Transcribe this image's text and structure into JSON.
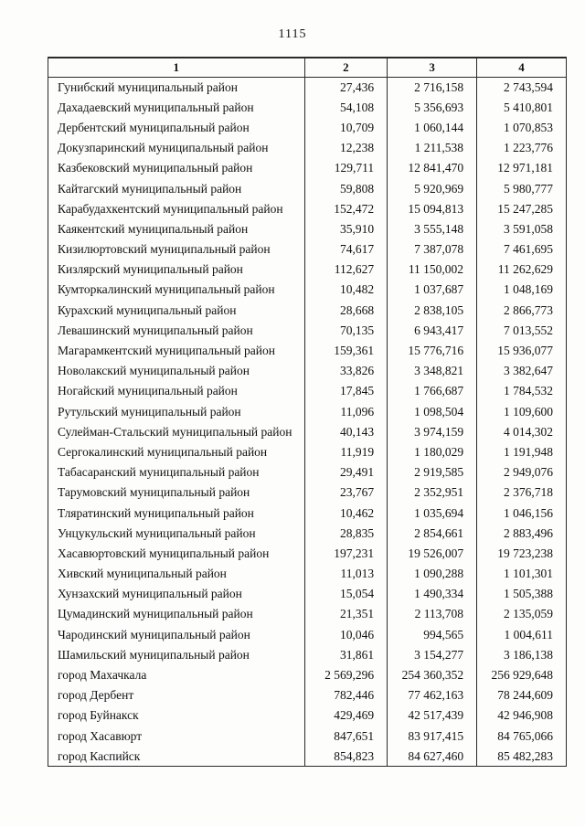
{
  "page": {
    "number": "1115"
  },
  "table": {
    "headers": [
      "1",
      "2",
      "3",
      "4"
    ],
    "rows": [
      {
        "name": "Гунибский муниципальный район",
        "c2": "27,436",
        "c3": "2 716,158",
        "c4": "2 743,594"
      },
      {
        "name": "Дахадаевский муниципальный район",
        "c2": "54,108",
        "c3": "5 356,693",
        "c4": "5 410,801"
      },
      {
        "name": "Дербентский муниципальный район",
        "c2": "10,709",
        "c3": "1 060,144",
        "c4": "1 070,853"
      },
      {
        "name": "Докузпаринский муниципальный район",
        "c2": "12,238",
        "c3": "1 211,538",
        "c4": "1 223,776"
      },
      {
        "name": "Казбековский муниципальный район",
        "c2": "129,711",
        "c3": "12 841,470",
        "c4": "12 971,181"
      },
      {
        "name": "Кайтагский муниципальный район",
        "c2": "59,808",
        "c3": "5 920,969",
        "c4": "5 980,777"
      },
      {
        "name": "Карабудахкентский муниципальный район",
        "c2": "152,472",
        "c3": "15 094,813",
        "c4": "15 247,285"
      },
      {
        "name": "Каякентский муниципальный район",
        "c2": "35,910",
        "c3": "3 555,148",
        "c4": "3 591,058"
      },
      {
        "name": "Кизилюртовский муниципальный район",
        "c2": "74,617",
        "c3": "7 387,078",
        "c4": "7 461,695"
      },
      {
        "name": "Кизлярский муниципальный район",
        "c2": "112,627",
        "c3": "11 150,002",
        "c4": "11 262,629"
      },
      {
        "name": "Кумторкалинский муниципальный район",
        "c2": "10,482",
        "c3": "1 037,687",
        "c4": "1 048,169"
      },
      {
        "name": "Курахский муниципальный район",
        "c2": "28,668",
        "c3": "2 838,105",
        "c4": "2 866,773"
      },
      {
        "name": "Левашинский муниципальный район",
        "c2": "70,135",
        "c3": "6 943,417",
        "c4": "7 013,552"
      },
      {
        "name": "Магарамкентский муниципальный район",
        "c2": "159,361",
        "c3": "15 776,716",
        "c4": "15 936,077"
      },
      {
        "name": "Новолакский муниципальный район",
        "c2": "33,826",
        "c3": "3 348,821",
        "c4": "3 382,647"
      },
      {
        "name": "Ногайский муниципальный район",
        "c2": "17,845",
        "c3": "1 766,687",
        "c4": "1 784,532"
      },
      {
        "name": "Рутульский муниципальный район",
        "c2": "11,096",
        "c3": "1 098,504",
        "c4": "1 109,600"
      },
      {
        "name": "Сулейман-Стальский муниципальный район",
        "c2": "40,143",
        "c3": "3 974,159",
        "c4": "4 014,302"
      },
      {
        "name": "Сергокалинский муниципальный район",
        "c2": "11,919",
        "c3": "1 180,029",
        "c4": "1 191,948"
      },
      {
        "name": "Табасаранский муниципальный район",
        "c2": "29,491",
        "c3": "2 919,585",
        "c4": "2 949,076"
      },
      {
        "name": "Тарумовский муниципальный район",
        "c2": "23,767",
        "c3": "2 352,951",
        "c4": "2 376,718"
      },
      {
        "name": "Тляратинский муниципальный район",
        "c2": "10,462",
        "c3": "1 035,694",
        "c4": "1 046,156"
      },
      {
        "name": "Унцукульский муниципальный район",
        "c2": "28,835",
        "c3": "2 854,661",
        "c4": "2 883,496"
      },
      {
        "name": "Хасавюртовский муниципальный район",
        "c2": "197,231",
        "c3": "19 526,007",
        "c4": "19 723,238"
      },
      {
        "name": "Хивский муниципальный район",
        "c2": "11,013",
        "c3": "1 090,288",
        "c4": "1 101,301"
      },
      {
        "name": "Хунзахский муниципальный район",
        "c2": "15,054",
        "c3": "1 490,334",
        "c4": "1 505,388"
      },
      {
        "name": "Цумадинский муниципальный район",
        "c2": "21,351",
        "c3": "2 113,708",
        "c4": "2 135,059"
      },
      {
        "name": "Чародинский муниципальный район",
        "c2": "10,046",
        "c3": "994,565",
        "c4": "1 004,611"
      },
      {
        "name": "Шамильский муниципальный район",
        "c2": "31,861",
        "c3": "3 154,277",
        "c4": "3 186,138"
      },
      {
        "name": "город Махачкала",
        "c2": "2 569,296",
        "c3": "254 360,352",
        "c4": "256 929,648"
      },
      {
        "name": "город Дербент",
        "c2": "782,446",
        "c3": "77 462,163",
        "c4": "78 244,609"
      },
      {
        "name": "город Буйнакск",
        "c2": "429,469",
        "c3": "42 517,439",
        "c4": "42 946,908"
      },
      {
        "name": "город Хасавюрт",
        "c2": "847,651",
        "c3": "83 917,415",
        "c4": "84 765,066"
      },
      {
        "name": "город Каспийск",
        "c2": "854,823",
        "c3": "84 627,460",
        "c4": "85 482,283"
      }
    ]
  }
}
